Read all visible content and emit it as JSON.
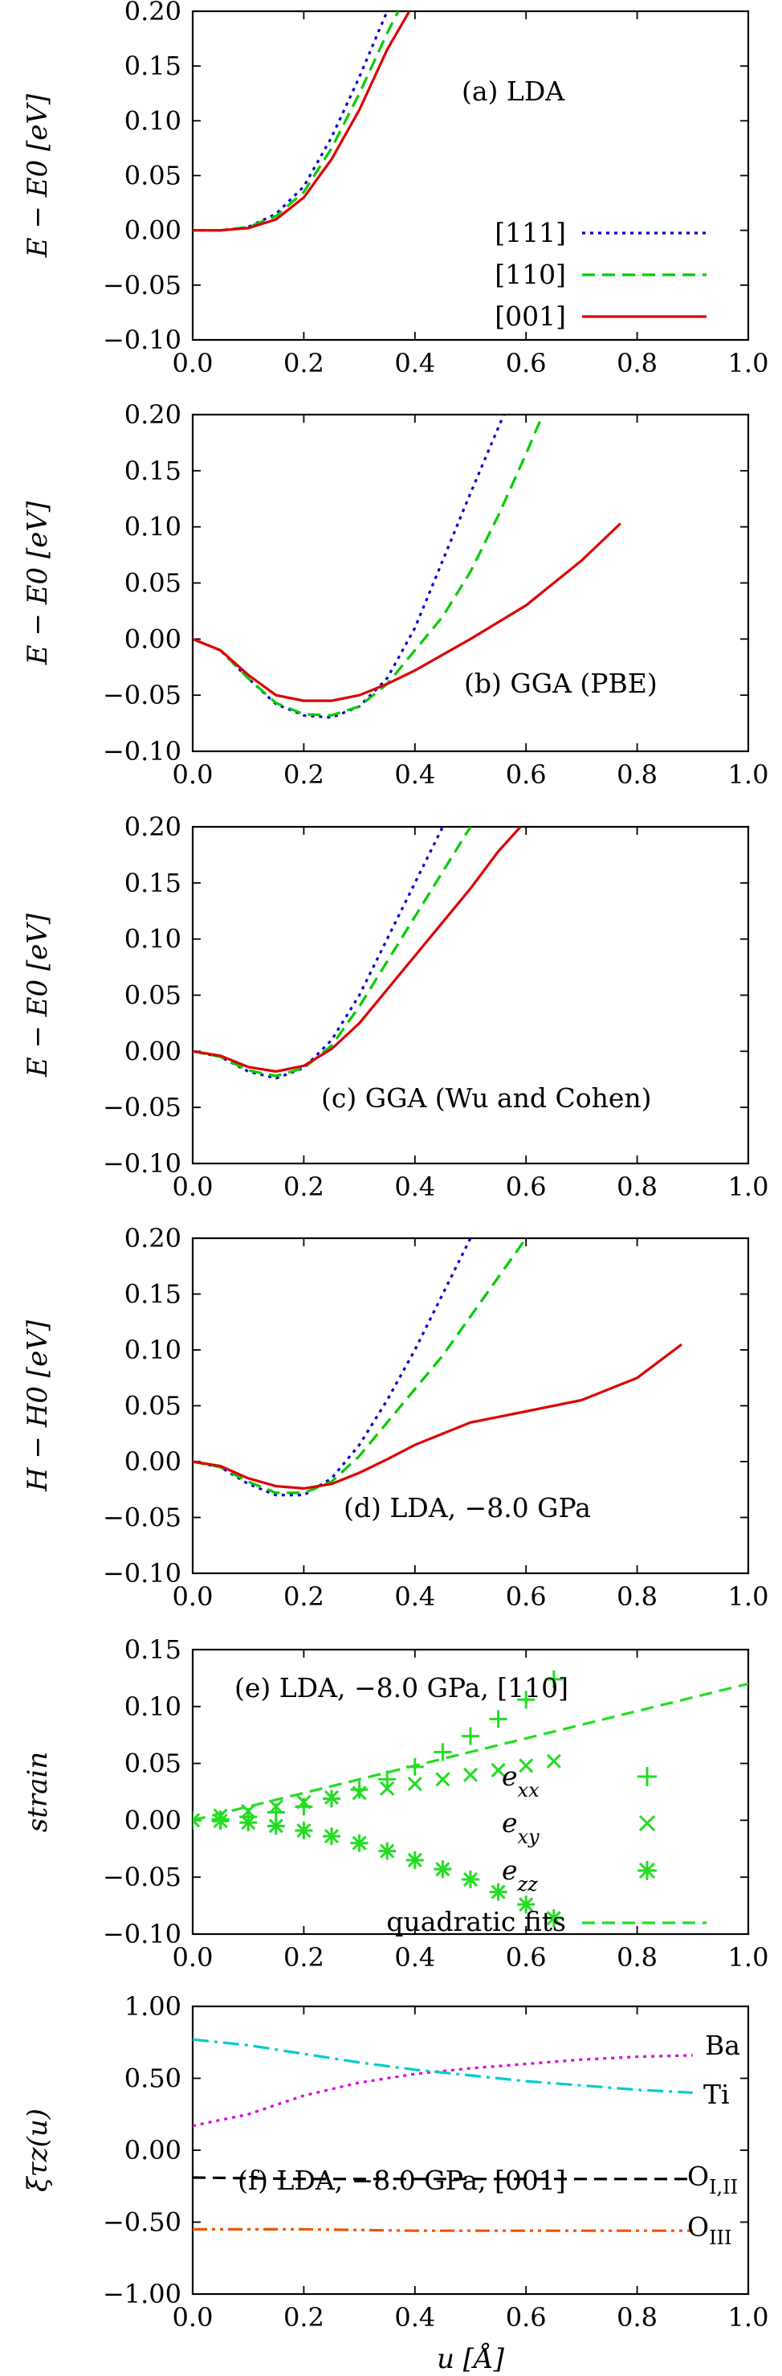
{
  "chart_data": [
    {
      "type": "line",
      "annotation": "(a) LDA",
      "ylabel": "E − E0 [eV]",
      "xlim": [
        0.0,
        1.0
      ],
      "ylim": [
        -0.1,
        0.2
      ],
      "xticks": [
        "0.0",
        "0.2",
        "0.4",
        "0.6",
        "0.8",
        "1.0"
      ],
      "yticks": [
        "0.20",
        "0.15",
        "0.10",
        "0.05",
        "0.00",
        "−0.05",
        "−0.10"
      ],
      "legend": {
        "position": "bottom-right"
      },
      "series": [
        {
          "name": "[111]",
          "color": "#0000cc",
          "dash": "dotted",
          "x": [
            0.0,
            0.05,
            0.1,
            0.15,
            0.2,
            0.25,
            0.3,
            0.35
          ],
          "y": [
            0.0,
            0.0,
            0.003,
            0.015,
            0.04,
            0.085,
            0.14,
            0.2
          ]
        },
        {
          "name": "[110]",
          "color": "#00cc00",
          "dash": "dashed",
          "x": [
            0.0,
            0.05,
            0.1,
            0.15,
            0.2,
            0.25,
            0.3,
            0.35,
            0.37
          ],
          "y": [
            0.0,
            0.0,
            0.003,
            0.013,
            0.035,
            0.075,
            0.125,
            0.18,
            0.2
          ]
        },
        {
          "name": "[001]",
          "color": "#dd0000",
          "dash": "solid",
          "x": [
            0.0,
            0.05,
            0.1,
            0.15,
            0.2,
            0.25,
            0.3,
            0.35,
            0.39
          ],
          "y": [
            0.0,
            0.0,
            0.002,
            0.01,
            0.03,
            0.065,
            0.11,
            0.165,
            0.2
          ]
        }
      ]
    },
    {
      "type": "line",
      "annotation": "(b) GGA (PBE)",
      "ylabel": "E − E0 [eV]",
      "xlim": [
        0.0,
        1.0
      ],
      "ylim": [
        -0.1,
        0.2
      ],
      "xticks": [
        "0.0",
        "0.2",
        "0.4",
        "0.6",
        "0.8",
        "1.0"
      ],
      "yticks": [
        "0.20",
        "0.15",
        "0.10",
        "0.05",
        "0.00",
        "−0.05",
        "−0.10"
      ],
      "series": [
        {
          "color": "#0000cc",
          "dash": "dotted",
          "x": [
            0.0,
            0.05,
            0.1,
            0.15,
            0.2,
            0.25,
            0.3,
            0.35,
            0.4,
            0.45,
            0.5,
            0.56
          ],
          "y": [
            0.0,
            -0.01,
            -0.035,
            -0.058,
            -0.068,
            -0.07,
            -0.06,
            -0.035,
            0.01,
            0.07,
            0.13,
            0.2
          ]
        },
        {
          "color": "#00cc00",
          "dash": "dashed",
          "x": [
            0.0,
            0.05,
            0.1,
            0.15,
            0.2,
            0.25,
            0.3,
            0.35,
            0.4,
            0.45,
            0.5,
            0.55,
            0.6,
            0.63
          ],
          "y": [
            0.0,
            -0.01,
            -0.035,
            -0.057,
            -0.067,
            -0.068,
            -0.06,
            -0.04,
            -0.01,
            0.02,
            0.06,
            0.11,
            0.165,
            0.2
          ]
        },
        {
          "color": "#dd0000",
          "dash": "solid",
          "x": [
            0.0,
            0.05,
            0.1,
            0.15,
            0.2,
            0.25,
            0.3,
            0.35,
            0.4,
            0.5,
            0.6,
            0.7,
            0.77
          ],
          "y": [
            0.0,
            -0.01,
            -0.032,
            -0.05,
            -0.055,
            -0.055,
            -0.05,
            -0.04,
            -0.028,
            0.0,
            0.03,
            0.07,
            0.103
          ]
        }
      ]
    },
    {
      "type": "line",
      "annotation": "(c) GGA (Wu and Cohen)",
      "ylabel": "E − E0 [eV]",
      "xlim": [
        0.0,
        1.0
      ],
      "ylim": [
        -0.1,
        0.2
      ],
      "xticks": [
        "0.0",
        "0.2",
        "0.4",
        "0.6",
        "0.8",
        "1.0"
      ],
      "yticks": [
        "0.20",
        "0.15",
        "0.10",
        "0.05",
        "0.00",
        "−0.05",
        "−0.10"
      ],
      "series": [
        {
          "color": "#0000cc",
          "dash": "dotted",
          "x": [
            0.0,
            0.05,
            0.1,
            0.15,
            0.2,
            0.25,
            0.3,
            0.35,
            0.4,
            0.45
          ],
          "y": [
            0.0,
            -0.005,
            -0.018,
            -0.024,
            -0.015,
            0.01,
            0.05,
            0.1,
            0.15,
            0.2
          ]
        },
        {
          "color": "#00cc00",
          "dash": "dashed",
          "x": [
            0.0,
            0.05,
            0.1,
            0.15,
            0.2,
            0.25,
            0.3,
            0.35,
            0.4,
            0.45,
            0.5
          ],
          "y": [
            0.0,
            -0.005,
            -0.017,
            -0.022,
            -0.015,
            0.005,
            0.04,
            0.08,
            0.12,
            0.16,
            0.2
          ]
        },
        {
          "color": "#dd0000",
          "dash": "solid",
          "x": [
            0.0,
            0.05,
            0.1,
            0.15,
            0.2,
            0.25,
            0.3,
            0.35,
            0.4,
            0.45,
            0.5,
            0.55,
            0.59
          ],
          "y": [
            0.0,
            -0.004,
            -0.014,
            -0.018,
            -0.013,
            0.002,
            0.025,
            0.055,
            0.085,
            0.115,
            0.145,
            0.178,
            0.2
          ]
        }
      ]
    },
    {
      "type": "line",
      "annotation": "(d) LDA, −8.0 GPa",
      "ylabel": "H − H0 [eV]",
      "xlim": [
        0.0,
        1.0
      ],
      "ylim": [
        -0.1,
        0.2
      ],
      "xticks": [
        "0.0",
        "0.2",
        "0.4",
        "0.6",
        "0.8",
        "1.0"
      ],
      "yticks": [
        "0.20",
        "0.15",
        "0.10",
        "0.05",
        "0.00",
        "−0.05",
        "−0.10"
      ],
      "series": [
        {
          "color": "#0000cc",
          "dash": "dotted",
          "x": [
            0.0,
            0.05,
            0.1,
            0.15,
            0.2,
            0.25,
            0.3,
            0.35,
            0.4,
            0.45,
            0.5
          ],
          "y": [
            0.0,
            -0.005,
            -0.02,
            -0.03,
            -0.03,
            -0.015,
            0.015,
            0.055,
            0.1,
            0.15,
            0.2
          ]
        },
        {
          "color": "#00cc00",
          "dash": "dashed",
          "x": [
            0.0,
            0.05,
            0.1,
            0.15,
            0.2,
            0.25,
            0.3,
            0.35,
            0.4,
            0.45,
            0.5,
            0.55,
            0.6
          ],
          "y": [
            0.0,
            -0.005,
            -0.018,
            -0.028,
            -0.028,
            -0.018,
            0.005,
            0.035,
            0.065,
            0.095,
            0.13,
            0.165,
            0.2
          ]
        },
        {
          "color": "#dd0000",
          "dash": "solid",
          "x": [
            0.0,
            0.05,
            0.1,
            0.15,
            0.2,
            0.25,
            0.3,
            0.35,
            0.4,
            0.5,
            0.6,
            0.7,
            0.8,
            0.88
          ],
          "y": [
            0.0,
            -0.004,
            -0.015,
            -0.022,
            -0.024,
            -0.02,
            -0.01,
            0.002,
            0.015,
            0.035,
            0.045,
            0.055,
            0.075,
            0.105
          ]
        }
      ]
    },
    {
      "type": "scatter",
      "annotation": "(e) LDA, −8.0 GPa, [110]",
      "ylabel": "strain",
      "xlim": [
        0.0,
        1.0
      ],
      "ylim": [
        -0.1,
        0.15
      ],
      "xticks": [
        "0.0",
        "0.2",
        "0.4",
        "0.6",
        "0.8",
        "1.0"
      ],
      "yticks": [
        "0.15",
        "0.10",
        "0.05",
        "0.00",
        "−0.05",
        "−0.10"
      ],
      "legend": {
        "position": "right"
      },
      "series": [
        {
          "name": "exx",
          "marker": "+",
          "color": "#22dd22",
          "x": [
            0.0,
            0.05,
            0.1,
            0.15,
            0.2,
            0.25,
            0.3,
            0.35,
            0.4,
            0.45,
            0.5,
            0.55,
            0.6,
            0.65
          ],
          "y": [
            0.0,
            0.0008,
            0.003,
            0.007,
            0.012,
            0.019,
            0.027,
            0.036,
            0.047,
            0.06,
            0.074,
            0.089,
            0.106,
            0.124
          ]
        },
        {
          "name": "exy",
          "marker": "x",
          "color": "#22dd22",
          "x": [
            0.0,
            0.05,
            0.1,
            0.15,
            0.2,
            0.25,
            0.3,
            0.35,
            0.4,
            0.45,
            0.5,
            0.55,
            0.6,
            0.65
          ],
          "y": [
            0.0,
            0.004,
            0.008,
            0.012,
            0.016,
            0.02,
            0.024,
            0.028,
            0.032,
            0.036,
            0.04,
            0.044,
            0.048,
            0.052
          ]
        },
        {
          "name": "ezz",
          "marker": "*",
          "color": "#22dd22",
          "x": [
            0.0,
            0.05,
            0.1,
            0.15,
            0.2,
            0.25,
            0.3,
            0.35,
            0.4,
            0.45,
            0.5,
            0.55,
            0.6,
            0.65
          ],
          "y": [
            0.0,
            -0.0006,
            -0.002,
            -0.005,
            -0.009,
            -0.014,
            -0.02,
            -0.027,
            -0.035,
            -0.043,
            -0.052,
            -0.063,
            -0.074,
            -0.086
          ]
        },
        {
          "name": "quadratic fits",
          "marker": "line",
          "color": "#22dd22",
          "dash": "dashed",
          "x": [
            0.0,
            0.1,
            0.2,
            0.3,
            0.4,
            0.5,
            0.6,
            0.7,
            0.8,
            0.9,
            1.0
          ],
          "y": [
            0.0,
            0.012,
            0.024,
            0.036,
            0.048,
            0.06,
            0.072,
            0.084,
            0.096,
            0.108,
            0.12
          ]
        }
      ]
    },
    {
      "type": "line",
      "annotation": "(f) LDA, −8.0 GPa, [001]",
      "ylabel": "ξτz(u)",
      "xlabel": "u [Å]",
      "xlim": [
        0.0,
        1.0
      ],
      "ylim": [
        -1.0,
        1.0
      ],
      "xticks": [
        "0.0",
        "0.2",
        "0.4",
        "0.6",
        "0.8",
        "1.0"
      ],
      "yticks": [
        "1.00",
        "0.50",
        "0.00",
        "−0.50",
        "−1.00"
      ],
      "series": [
        {
          "name": "Ba",
          "color": "#dd00dd",
          "dash": "dotted",
          "x": [
            0.0,
            0.1,
            0.2,
            0.3,
            0.4,
            0.5,
            0.6,
            0.7,
            0.8,
            0.9
          ],
          "y": [
            0.17,
            0.25,
            0.38,
            0.47,
            0.53,
            0.57,
            0.6,
            0.63,
            0.65,
            0.66
          ]
        },
        {
          "name": "Ti",
          "color": "#00cccc",
          "dash": "dashdot",
          "x": [
            0.0,
            0.1,
            0.2,
            0.3,
            0.4,
            0.5,
            0.6,
            0.7,
            0.8,
            0.9
          ],
          "y": [
            0.77,
            0.73,
            0.67,
            0.61,
            0.56,
            0.52,
            0.48,
            0.45,
            0.42,
            0.4
          ]
        },
        {
          "name": "OI,II",
          "color": "#000000",
          "dash": "dashed",
          "x": [
            0.0,
            0.2,
            0.4,
            0.6,
            0.8,
            0.9
          ],
          "y": [
            -0.19,
            -0.2,
            -0.2,
            -0.2,
            -0.2,
            -0.2
          ]
        },
        {
          "name": "OIII",
          "color": "#ee5500",
          "dash": "dashdotdot",
          "x": [
            0.0,
            0.2,
            0.4,
            0.6,
            0.8,
            0.9
          ],
          "y": [
            -0.55,
            -0.55,
            -0.56,
            -0.56,
            -0.56,
            -0.56
          ]
        }
      ]
    }
  ]
}
